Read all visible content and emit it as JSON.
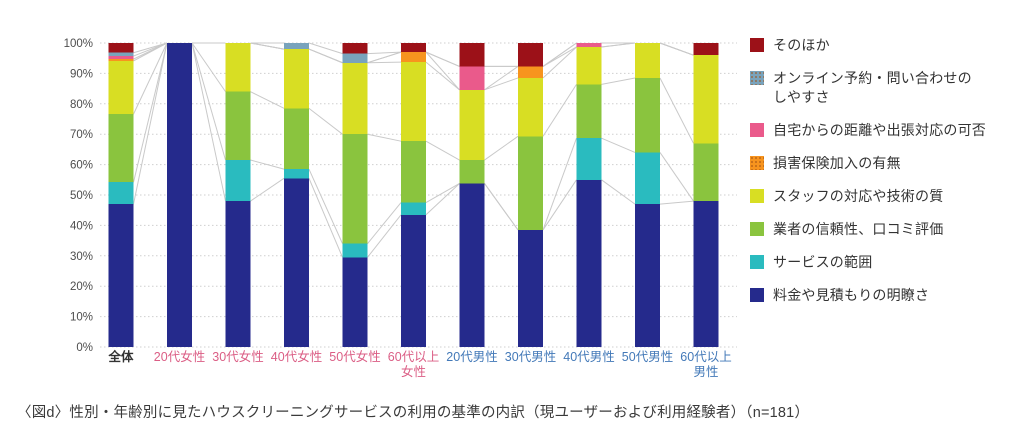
{
  "caption": "〈図d〉性別・年齢別に見たハウスクリーニングサービスの利用の基準の内訳（現ユーザーおよび利用経験者）（n=181）",
  "chart_data": {
    "type": "bar",
    "stacked": true,
    "percent": true,
    "title": "",
    "xlabel": "",
    "ylabel": "",
    "ylim": [
      0,
      100
    ],
    "ytick_step": 10,
    "ytick_suffix": "%",
    "grid": "horizontal-dotted",
    "legend_position": "right",
    "connector_lines": true,
    "categories": [
      {
        "label": "全体",
        "group": "overall"
      },
      {
        "label": "20代女性",
        "group": "female"
      },
      {
        "label": "30代女性",
        "group": "female"
      },
      {
        "label": "40代女性",
        "group": "female"
      },
      {
        "label": "50代女性",
        "group": "female"
      },
      {
        "label": "60代以上\n女性",
        "group": "female"
      },
      {
        "label": "20代男性",
        "group": "male"
      },
      {
        "label": "30代男性",
        "group": "male"
      },
      {
        "label": "40代男性",
        "group": "male"
      },
      {
        "label": "50代男性",
        "group": "male"
      },
      {
        "label": "60代以上\n男性",
        "group": "male"
      }
    ],
    "label_colors": {
      "overall": "#333333",
      "female": "#db5e85",
      "male": "#4379b8"
    },
    "series": [
      {
        "name": "料金や見積もりの明瞭さ",
        "color": "#252a8c",
        "values": [
          47.0,
          100,
          48.0,
          55.5,
          29.5,
          43.5,
          53.8,
          38.5,
          55.0,
          47.0,
          48.0
        ]
      },
      {
        "name": "サービスの範囲",
        "color": "#2abbbf",
        "values": [
          7.2,
          0,
          13.5,
          3.0,
          4.5,
          4.0,
          0,
          0,
          13.7,
          17.0,
          0
        ]
      },
      {
        "name": "業者の信頼性、口コミ評価",
        "color": "#8ac43e",
        "values": [
          22.4,
          0,
          22.5,
          20.0,
          36.0,
          20.2,
          7.7,
          30.8,
          17.7,
          24.5,
          19.0
        ]
      },
      {
        "name": "スタッフの対応や技術の質",
        "color": "#d8de23",
        "values": [
          17.5,
          0,
          16.0,
          19.5,
          23.5,
          26.0,
          23.1,
          19.2,
          12.3,
          11.5,
          29.0
        ]
      },
      {
        "name": "損害保険加入の有無",
        "color": "#f7941e",
        "textured": true,
        "values": [
          0.6,
          0,
          0,
          0,
          0,
          3.3,
          0,
          3.8,
          0,
          0,
          0
        ]
      },
      {
        "name": "自宅からの距離や出張対応の可否",
        "color": "#ea5a8b",
        "values": [
          1.0,
          0,
          0,
          0,
          0,
          0,
          7.7,
          0,
          1.3,
          0,
          0
        ]
      },
      {
        "name": "オンライン予約・問い合わせのしやすさ",
        "legend_label": "オンライン予約・問い合わせの\nしやすさ",
        "color": "#79a3bc",
        "textured": true,
        "values": [
          1.1,
          0,
          0,
          2.0,
          3.0,
          0,
          0,
          0,
          0,
          0,
          0
        ]
      },
      {
        "name": "そのほか",
        "color": "#9c1118",
        "values": [
          3.2,
          0,
          0,
          0,
          3.5,
          3.0,
          7.7,
          7.7,
          0,
          0,
          4.0
        ]
      }
    ]
  }
}
